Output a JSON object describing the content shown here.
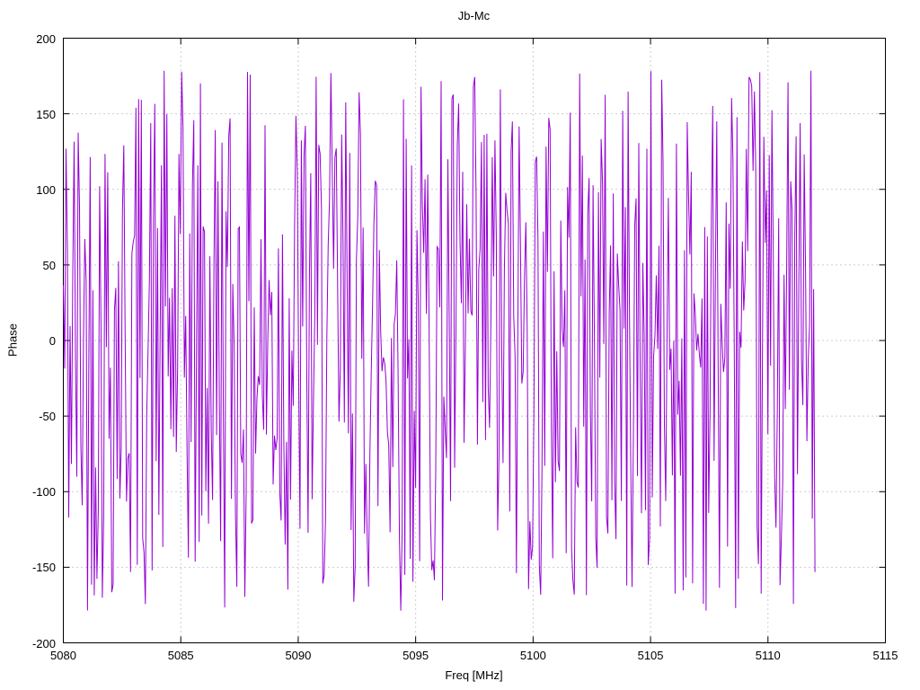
{
  "background_color": "#ffffff",
  "chart_data": {
    "type": "line",
    "title": "Jb-Mc",
    "xlabel": "Freq [MHz]",
    "ylabel": "Phase",
    "xlim": [
      5080,
      5115
    ],
    "ylim": [
      -200,
      200
    ],
    "x_ticks": [
      5080,
      5085,
      5090,
      5095,
      5100,
      5105,
      5110,
      5115
    ],
    "y_ticks": [
      -200,
      -150,
      -100,
      -50,
      0,
      50,
      100,
      150,
      200
    ],
    "grid": "dotted",
    "grid_color": "#9a9a9a",
    "border_color": "#000000",
    "legend": "none",
    "line_color": "#9400d3",
    "series": [
      {
        "name": "phase",
        "description": "Densely sampled wrapped interferometric phase, visually uniform random between -180 and 180 degrees across the band",
        "x_start": 5080,
        "x_end": 5112,
        "n_points": 560,
        "y_min": -180,
        "y_max": 180,
        "distribution": "uniform-wrapped-phase",
        "seed": 42
      }
    ]
  }
}
